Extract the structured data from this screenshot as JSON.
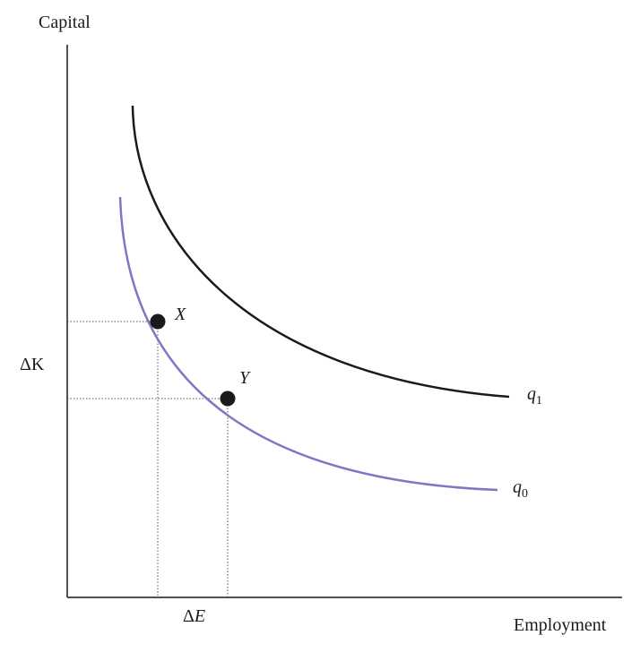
{
  "axes": {
    "y_label": "Capital",
    "x_label": "Employment",
    "delta_k": "ΔK",
    "delta_e_symbol": "Δ",
    "delta_e_var": "E"
  },
  "curves": {
    "q0": {
      "var": "q",
      "sub": "0",
      "color": "#7b78c4"
    },
    "q1": {
      "var": "q",
      "sub": "1",
      "color": "#1a1a1a"
    }
  },
  "points": {
    "x": {
      "label": "X"
    },
    "y": {
      "label": "Y"
    }
  },
  "colors": {
    "axis": "#1a1a1a",
    "guide": "#555555",
    "point": "#1a1a1a"
  }
}
